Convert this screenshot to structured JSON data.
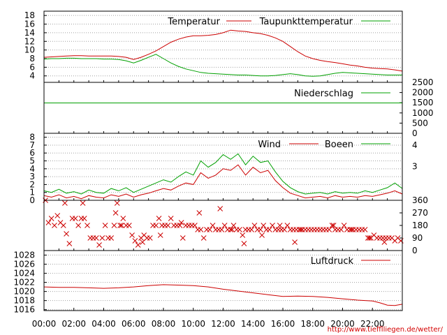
{
  "credit": "http://www.tiefflliegen.de/wetter/",
  "colors": {
    "red": "#cc0000",
    "green": "#00a000",
    "grid": "#a0a0a0",
    "frame": "#000000"
  },
  "chart_data": [
    {
      "type": "line",
      "panel": "temperature",
      "ylim": [
        2.5,
        19
      ],
      "yticks": [
        "18",
        "16",
        "14",
        "12",
        "10",
        "8",
        "6",
        "4"
      ],
      "ytick_values": [
        18,
        16,
        14,
        12,
        10,
        8,
        6,
        4
      ],
      "grid": true,
      "legend": "top-right",
      "series": [
        {
          "name": "Temperatur",
          "color": "#cc0000",
          "x": [
            0,
            0.5,
            1,
            1.5,
            2,
            2.5,
            3,
            3.5,
            4,
            4.5,
            5,
            5.5,
            6,
            6.5,
            7,
            7.5,
            8,
            8.5,
            9,
            9.5,
            10,
            10.5,
            11,
            11.5,
            12,
            12.5,
            13,
            13.5,
            14,
            14.5,
            15,
            15.5,
            16,
            16.5,
            17,
            17.5,
            18,
            18.5,
            19,
            19.5,
            20,
            20.5,
            21,
            21.5,
            22,
            22.5,
            23,
            23.5,
            24
          ],
          "y": [
            8.3,
            8.4,
            8.5,
            8.6,
            8.7,
            8.7,
            8.6,
            8.6,
            8.6,
            8.6,
            8.5,
            8.3,
            7.8,
            8.3,
            9.0,
            9.8,
            10.8,
            11.8,
            12.5,
            13.0,
            13.3,
            13.3,
            13.4,
            13.6,
            14.0,
            14.6,
            14.4,
            14.3,
            14.0,
            13.8,
            13.4,
            12.8,
            12.0,
            10.8,
            9.6,
            8.6,
            8.0,
            7.6,
            7.3,
            7.1,
            6.8,
            6.5,
            6.3,
            6.0,
            5.8,
            5.7,
            5.6,
            5.4,
            5.1
          ]
        },
        {
          "name": "Taupunkttemperatur",
          "color": "#00a000",
          "x": [
            0,
            0.5,
            1,
            1.5,
            2,
            2.5,
            3,
            3.5,
            4,
            4.5,
            5,
            5.5,
            6,
            6.5,
            7,
            7.5,
            8,
            8.5,
            9,
            9.5,
            10,
            10.5,
            11,
            11.5,
            12,
            12.5,
            13,
            13.5,
            14,
            14.5,
            15,
            15.5,
            16,
            16.5,
            17,
            17.5,
            18,
            18.5,
            19,
            19.5,
            20,
            20.5,
            21,
            21.5,
            22,
            22.5,
            23,
            23.5,
            24
          ],
          "y": [
            7.9,
            8.0,
            8.0,
            8.1,
            8.1,
            8.0,
            8.0,
            8.0,
            7.9,
            7.9,
            7.8,
            7.5,
            7.0,
            7.6,
            8.3,
            9.0,
            8.0,
            7.0,
            6.2,
            5.6,
            5.2,
            4.8,
            4.6,
            4.5,
            4.4,
            4.3,
            4.2,
            4.2,
            4.1,
            4.0,
            4.0,
            4.1,
            4.3,
            4.5,
            4.3,
            4.0,
            3.9,
            4.0,
            4.3,
            4.6,
            4.8,
            4.7,
            4.6,
            4.5,
            4.4,
            4.3,
            4.2,
            4.2,
            4.2
          ]
        }
      ]
    },
    {
      "type": "line",
      "panel": "precipitation",
      "ylim": [
        0,
        2500
      ],
      "yticks": [
        "2500",
        "2000",
        "1500",
        "1000",
        "500",
        "0"
      ],
      "ytick_values": [
        2500,
        2000,
        1500,
        1000,
        500,
        0
      ],
      "series": [
        {
          "name": "Niederschlag",
          "color": "#00a000",
          "x": [
            0,
            24
          ],
          "y": [
            1490,
            1490
          ]
        }
      ]
    },
    {
      "type": "line",
      "panel": "wind",
      "ylim": [
        0,
        8.5
      ],
      "yticks": [
        "8",
        "7",
        "6",
        "5",
        "4",
        "3",
        "2",
        "1",
        "0"
      ],
      "ytick_values": [
        8,
        7,
        6,
        5,
        4,
        3,
        2,
        1,
        0
      ],
      "yticks_right": [
        "4",
        "3"
      ],
      "ytick_right_values": [
        7,
        4.3
      ],
      "grid": true,
      "series": [
        {
          "name": "Wind",
          "color": "#cc0000",
          "x": [
            0,
            0.5,
            1,
            1.5,
            2,
            2.5,
            3,
            3.5,
            4,
            4.5,
            5,
            5.5,
            6,
            6.5,
            7,
            7.5,
            8,
            8.5,
            9,
            9.5,
            10,
            10.5,
            11,
            11.5,
            12,
            12.5,
            13,
            13.5,
            14,
            14.5,
            15,
            15.5,
            16,
            16.5,
            17,
            17.5,
            18,
            18.5,
            19,
            19.5,
            20,
            20.5,
            21,
            21.5,
            22,
            22.5,
            23,
            23.5,
            24
          ],
          "y": [
            0.6,
            0.4,
            0.7,
            0.3,
            0.5,
            0.2,
            0.6,
            0.4,
            0.3,
            0.7,
            0.5,
            0.8,
            0.4,
            0.7,
            0.9,
            1.2,
            1.5,
            1.3,
            1.8,
            2.2,
            2.0,
            3.5,
            2.8,
            3.2,
            4.0,
            3.8,
            4.5,
            3.2,
            4.2,
            3.5,
            3.8,
            2.5,
            1.6,
            0.9,
            0.6,
            0.3,
            0.4,
            0.5,
            0.3,
            0.6,
            0.4,
            0.5,
            0.4,
            0.6,
            0.5,
            0.7,
            0.9,
            1.2,
            0.8
          ]
        },
        {
          "name": "Boeen",
          "color": "#00a000",
          "x": [
            0,
            0.5,
            1,
            1.5,
            2,
            2.5,
            3,
            3.5,
            4,
            4.5,
            5,
            5.5,
            6,
            6.5,
            7,
            7.5,
            8,
            8.5,
            9,
            9.5,
            10,
            10.5,
            11,
            11.5,
            12,
            12.5,
            13,
            13.5,
            14,
            14.5,
            15,
            15.5,
            16,
            16.5,
            17,
            17.5,
            18,
            18.5,
            19,
            19.5,
            20,
            20.5,
            21,
            21.5,
            22,
            22.5,
            23,
            23.5,
            24
          ],
          "y": [
            1.2,
            1.0,
            1.4,
            0.9,
            1.1,
            0.8,
            1.3,
            1.0,
            0.9,
            1.5,
            1.2,
            1.6,
            1.0,
            1.4,
            1.8,
            2.2,
            2.6,
            2.3,
            3.0,
            3.6,
            3.2,
            5.0,
            4.2,
            4.8,
            5.8,
            5.2,
            5.9,
            4.5,
            5.6,
            4.8,
            5.0,
            3.6,
            2.4,
            1.6,
            1.1,
            0.8,
            0.9,
            1.0,
            0.8,
            1.1,
            0.9,
            1.0,
            0.9,
            1.2,
            1.0,
            1.3,
            1.6,
            2.2,
            1.5
          ]
        }
      ]
    },
    {
      "type": "scatter",
      "panel": "wind-direction",
      "ylim": [
        0,
        360
      ],
      "yticks": [
        "360",
        "270",
        "180",
        "90",
        "0"
      ],
      "ytick_values": [
        360,
        270,
        180,
        90,
        0
      ],
      "series": [
        {
          "name": "",
          "color": "#cc0000",
          "marker": "x",
          "x": [
            0.1,
            0.3,
            0.5,
            0.7,
            0.9,
            1.1,
            1.3,
            1.5,
            1.7,
            1.9,
            2.1,
            2.3,
            2.5,
            2.7,
            2.9,
            3.1,
            3.3,
            3.5,
            3.7,
            3.9,
            4.1,
            4.3,
            4.5,
            4.7,
            4.9,
            5.1,
            5.3,
            5.5,
            5.7,
            5.9,
            6.1,
            6.3,
            6.5,
            6.7,
            6.9,
            7.1,
            7.3,
            7.5,
            7.7,
            7.9,
            8.1,
            8.3,
            8.5,
            8.7,
            8.9,
            9.1,
            9.3,
            9.5,
            9.7,
            9.9,
            10.1,
            10.3,
            10.5,
            10.7,
            10.9,
            11.1,
            11.3,
            11.5,
            11.7,
            11.9,
            12.1,
            12.3,
            12.5,
            12.7,
            12.9,
            13.1,
            13.3,
            13.5,
            13.7,
            13.9,
            14.1,
            14.3,
            14.5,
            14.7,
            14.9,
            15.1,
            15.3,
            15.5,
            15.7,
            15.9,
            16.1,
            16.3,
            16.5,
            16.7,
            16.9,
            17.1,
            17.3,
            17.5,
            17.7,
            17.9,
            18.1,
            18.3,
            18.5,
            18.7,
            18.9,
            19.1,
            19.3,
            19.5,
            19.7,
            19.9,
            20.1,
            20.3,
            20.5,
            20.7,
            20.9,
            21.1,
            21.3,
            21.5,
            21.7,
            21.9,
            22.1,
            22.3,
            22.5,
            22.7,
            22.9,
            23.1,
            23.3,
            23.5,
            23.7,
            23.9,
            1.4,
            2.6,
            4.8,
            5.2,
            6.6,
            7.8,
            9.2,
            10.4,
            11.8,
            12.6,
            13.4,
            14.6,
            15.8,
            16.8,
            17.2,
            19.4,
            20.6,
            21.8,
            22.8
          ],
          "y": [
            360,
            200,
            230,
            180,
            250,
            200,
            180,
            120,
            50,
            230,
            230,
            180,
            230,
            230,
            180,
            90,
            90,
            90,
            40,
            90,
            180,
            90,
            90,
            180,
            340,
            180,
            230,
            180,
            180,
            110,
            70,
            40,
            90,
            110,
            90,
            90,
            180,
            180,
            230,
            180,
            180,
            180,
            230,
            180,
            180,
            180,
            90,
            180,
            180,
            180,
            180,
            150,
            150,
            90,
            150,
            150,
            180,
            150,
            150,
            150,
            180,
            150,
            150,
            180,
            150,
            150,
            110,
            150,
            150,
            150,
            180,
            150,
            150,
            180,
            150,
            150,
            180,
            150,
            150,
            150,
            150,
            180,
            150,
            150,
            150,
            150,
            150,
            150,
            150,
            150,
            150,
            150,
            150,
            150,
            150,
            150,
            180,
            150,
            150,
            150,
            180,
            150,
            150,
            150,
            150,
            150,
            150,
            150,
            90,
            90,
            110,
            90,
            90,
            90,
            90,
            90,
            90,
            70,
            90,
            70,
            340,
            340,
            270,
            180,
            60,
            110,
            200,
            270,
            300,
            150,
            50,
            110,
            180,
            60,
            150,
            180,
            150,
            90,
            60
          ]
        }
      ]
    },
    {
      "type": "line",
      "panel": "pressure",
      "ylim": [
        1015.8,
        1029
      ],
      "yticks": [
        "1028",
        "1026",
        "1024",
        "1022",
        "1020",
        "1018",
        "1016"
      ],
      "ytick_values": [
        1028,
        1026,
        1024,
        1022,
        1020,
        1018,
        1016
      ],
      "grid": true,
      "xticks": [
        "00:00",
        "02:00",
        "04:00",
        "06:00",
        "08:00",
        "10:00",
        "12:00",
        "14:00",
        "16:00",
        "18:00",
        "20:00",
        "22:00"
      ],
      "xtick_values": [
        0,
        2,
        4,
        6,
        8,
        10,
        12,
        14,
        16,
        18,
        20,
        22
      ],
      "xlim": [
        0,
        24
      ],
      "series": [
        {
          "name": "Luftdruck",
          "color": "#cc0000",
          "x": [
            0,
            1,
            2,
            3,
            4,
            5,
            6,
            7,
            8,
            9,
            10,
            11,
            12,
            13,
            14,
            15,
            16,
            17,
            18,
            19,
            20,
            21,
            22,
            22.5,
            23,
            23.5,
            24
          ],
          "y": [
            1021.0,
            1020.9,
            1020.9,
            1020.8,
            1020.7,
            1020.8,
            1021.0,
            1021.3,
            1021.5,
            1021.4,
            1021.3,
            1021.0,
            1020.5,
            1020.1,
            1019.7,
            1019.3,
            1018.9,
            1019.0,
            1018.9,
            1018.7,
            1018.4,
            1018.1,
            1017.9,
            1017.5,
            1017.0,
            1016.9,
            1017.2
          ]
        }
      ]
    }
  ]
}
